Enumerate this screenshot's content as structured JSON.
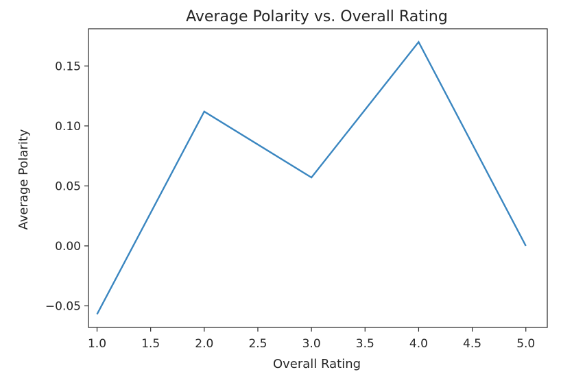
{
  "chart_data": {
    "type": "line",
    "title": "Average Polarity vs. Overall Rating",
    "xlabel": "Overall Rating",
    "ylabel": "Average Polarity",
    "x": [
      1.0,
      2.0,
      3.0,
      4.0,
      5.0
    ],
    "series": [
      {
        "values": [
          -0.057,
          0.112,
          0.057,
          0.17,
          0.0
        ]
      }
    ],
    "xlim": [
      0.92,
      5.2
    ],
    "ylim": [
      -0.068,
      0.181
    ],
    "xticks": [
      1.0,
      1.5,
      2.0,
      2.5,
      3.0,
      3.5,
      4.0,
      4.5,
      5.0
    ],
    "xtick_labels": [
      "1.0",
      "1.5",
      "2.0",
      "2.5",
      "3.0",
      "3.5",
      "4.0",
      "4.5",
      "5.0"
    ],
    "yticks": [
      -0.05,
      0.0,
      0.05,
      0.1,
      0.15
    ],
    "ytick_labels": [
      "−0.05",
      "0.00",
      "0.05",
      "0.10",
      "0.15"
    ],
    "grid": false,
    "colors": {
      "line": "#3a86c0",
      "axes": "#262626"
    }
  }
}
